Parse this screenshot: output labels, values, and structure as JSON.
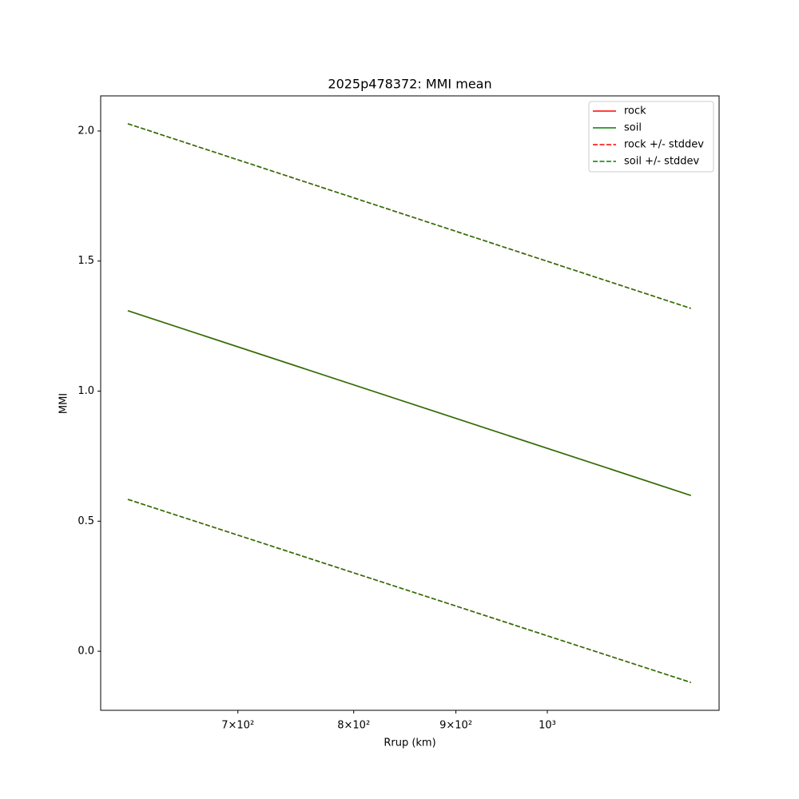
{
  "chart_data": {
    "type": "line",
    "title": "2025p478372: MMI mean",
    "xlabel": "Rrup (km)",
    "ylabel": "MMI",
    "xscale": "log",
    "x": [
      616.6,
      1180
    ],
    "series": [
      {
        "name": "rock",
        "color": "#ff0000",
        "style": "solid",
        "values": [
          1.309,
          0.599
        ]
      },
      {
        "name": "soil",
        "color": "#008000",
        "style": "solid",
        "values": [
          1.309,
          0.599
        ]
      },
      {
        "name": "rock +/- stddev",
        "color": "#ff0000",
        "style": "dashed",
        "upper": [
          2.028,
          1.318
        ],
        "lower": [
          0.584,
          -0.12
        ]
      },
      {
        "name": "soil +/- stddev",
        "color": "#008000",
        "style": "dashed",
        "upper": [
          2.028,
          1.318
        ],
        "lower": [
          0.584,
          -0.12
        ]
      }
    ],
    "xlim": [
      597.6,
      1219
    ],
    "ylim": [
      -0.227,
      2.135
    ],
    "xticks": [
      {
        "value": 700,
        "label": "7×10²"
      },
      {
        "value": 800,
        "label": "8×10²"
      },
      {
        "value": 900,
        "label": "9×10²"
      },
      {
        "value": 1000,
        "label": "10³"
      }
    ],
    "yticks": [
      {
        "value": 0,
        "label": "0.0"
      },
      0.5,
      {
        "value": 1,
        "label": "1.0"
      },
      1.5,
      {
        "value": 2,
        "label": "2.0"
      }
    ],
    "grid": false,
    "legend": "upper right"
  }
}
